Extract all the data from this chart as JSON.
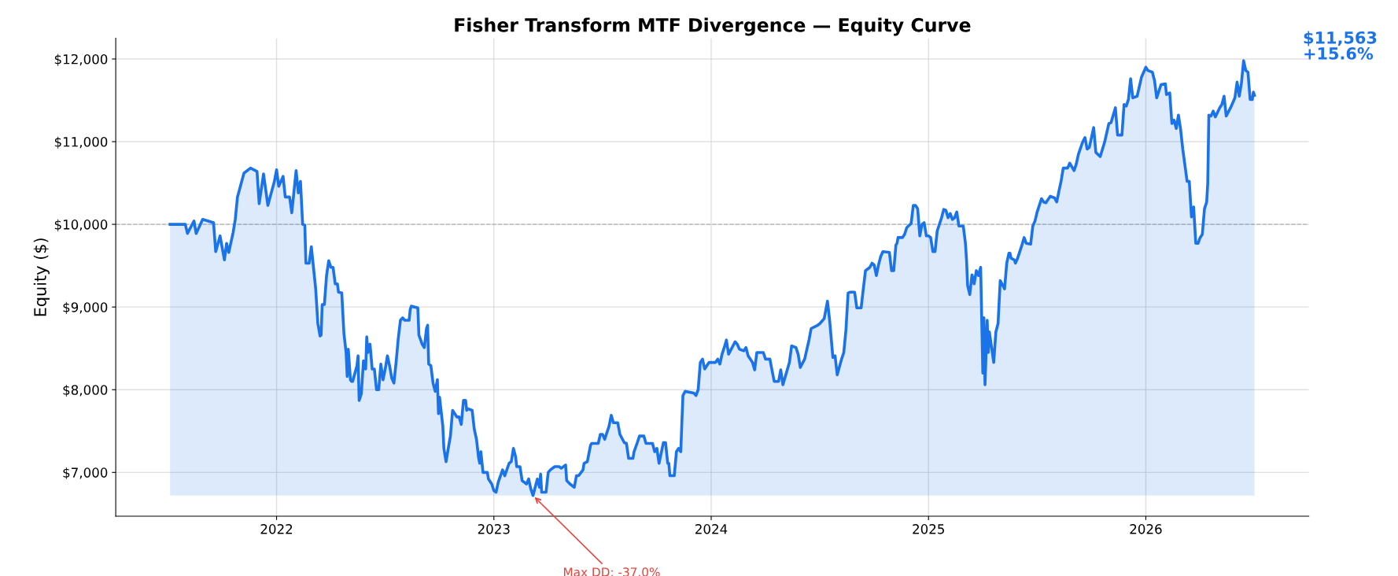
{
  "chart_data": {
    "type": "area",
    "title": "Fisher Transform MTF Divergence — Equity Curve",
    "ylabel": "Equity ($)",
    "xlim": [
      2021.26,
      2026.75
    ],
    "xticks": [
      {
        "value": 2022,
        "label": "2022"
      },
      {
        "value": 2023,
        "label": "2023"
      },
      {
        "value": 2024,
        "label": "2024"
      },
      {
        "value": 2025,
        "label": "2025"
      },
      {
        "value": 2026,
        "label": "2026"
      }
    ],
    "ylim": [
      6470,
      12250
    ],
    "yticks": [
      {
        "value": 7000,
        "label": "$7,000"
      },
      {
        "value": 8000,
        "label": "$8,000"
      },
      {
        "value": 9000,
        "label": "$9,000"
      },
      {
        "value": 10000,
        "label": "$10,000"
      },
      {
        "value": 11000,
        "label": "$11,000"
      },
      {
        "value": 12000,
        "label": "$12,000"
      }
    ],
    "grid": true,
    "ref_lines": [
      {
        "axis": "y",
        "value": 10000,
        "color": "#b0b0b0",
        "line_style": "dashed"
      }
    ],
    "annotations": [
      {
        "text": "Max DD: -37.0%",
        "x": 2023.18,
        "y": 6720
      },
      "$11,563\n+15.6%"
    ],
    "series": [
      {
        "color": "#1a73e8",
        "x": [
          2021.51,
          2021.58,
          2021.59,
          2021.62,
          2021.63,
          2021.66,
          2021.71,
          2021.72,
          2021.74,
          2021.76,
          2021.77,
          2021.78,
          2021.8,
          2021.81,
          2021.82,
          2021.85,
          2021.88,
          2021.91,
          2021.92,
          2021.94,
          2021.96,
          2021.99,
          2022.0,
          2022.01,
          2022.03,
          2022.04,
          2022.06,
          2022.07,
          2022.09,
          2022.1,
          2022.11,
          2022.12,
          2022.13,
          2022.135,
          2022.15,
          2022.16,
          2022.18,
          2022.19,
          2022.2,
          2022.205,
          2022.21,
          2022.22,
          2022.23,
          2022.24,
          2022.25,
          2022.26,
          2022.27,
          2022.28,
          2022.285,
          2022.3,
          2022.31,
          2022.32,
          2022.325,
          2022.33,
          2022.34,
          2022.345,
          2022.35,
          2022.37,
          2022.375,
          2022.38,
          2022.39,
          2022.4,
          2022.41,
          2022.415,
          2022.42,
          2022.43,
          2022.44,
          2022.45,
          2022.46,
          2022.47,
          2022.48,
          2022.49,
          2022.5,
          2022.51,
          2022.52,
          2022.53,
          2022.54,
          2022.55,
          2022.56,
          2022.57,
          2022.58,
          2022.59,
          2022.61,
          2022.615,
          2022.62,
          2022.65,
          2022.655,
          2022.67,
          2022.68,
          2022.69,
          2022.695,
          2022.7,
          2022.71,
          2022.72,
          2022.73,
          2022.74,
          2022.745,
          2022.75,
          2022.765,
          2022.77,
          2022.78,
          2022.79,
          2022.8,
          2022.81,
          2022.83,
          2022.84,
          2022.85,
          2022.86,
          2022.87,
          2022.875,
          2022.88,
          2022.9,
          2022.91,
          2022.92,
          2022.93,
          2022.935,
          2022.94,
          2022.95,
          2022.97,
          2022.975,
          2022.99,
          2023.0,
          2023.01,
          2023.02,
          2023.04,
          2023.05,
          2023.07,
          2023.08,
          2023.09,
          2023.1,
          2023.105,
          2023.12,
          2023.13,
          2023.15,
          2023.16,
          2023.17,
          2023.18,
          2023.2,
          2023.21,
          2023.215,
          2023.22,
          2023.24,
          2023.25,
          2023.26,
          2023.28,
          2023.3,
          2023.31,
          2023.33,
          2023.335,
          2023.35,
          2023.37,
          2023.38,
          2023.39,
          2023.41,
          2023.415,
          2023.43,
          2023.445,
          2023.45,
          2023.48,
          2023.49,
          2023.5,
          2023.51,
          2023.53,
          2023.54,
          2023.55,
          2023.57,
          2023.58,
          2023.6,
          2023.61,
          2023.62,
          2023.64,
          2023.645,
          2023.66,
          2023.67,
          2023.69,
          2023.7,
          2023.73,
          2023.74,
          2023.75,
          2023.76,
          2023.78,
          2023.79,
          2023.8,
          2023.805,
          2023.81,
          2023.83,
          2023.84,
          2023.85,
          2023.86,
          2023.865,
          2023.87,
          2023.88,
          2023.92,
          2023.93,
          2023.94,
          2023.95,
          2023.96,
          2023.97,
          2023.99,
          2024.02,
          2024.03,
          2024.04,
          2024.05,
          2024.06,
          2024.07,
          2024.08,
          2024.11,
          2024.12,
          2024.13,
          2024.15,
          2024.16,
          2024.17,
          2024.19,
          2024.2,
          2024.21,
          2024.24,
          2024.25,
          2024.27,
          2024.29,
          2024.31,
          2024.32,
          2024.33,
          2024.35,
          2024.36,
          2024.37,
          2024.39,
          2024.4,
          2024.41,
          2024.43,
          2024.45,
          2024.46,
          2024.49,
          2024.5,
          2024.52,
          2024.535,
          2024.545,
          2024.56,
          2024.57,
          2024.58,
          2024.6,
          2024.61,
          2024.62,
          2024.63,
          2024.64,
          2024.66,
          2024.67,
          2024.69,
          2024.7,
          2024.71,
          2024.73,
          2024.74,
          2024.75,
          2024.76,
          2024.77,
          2024.78,
          2024.79,
          2024.82,
          2024.83,
          2024.84,
          2024.85,
          2024.855,
          2024.86,
          2024.88,
          2024.89,
          2024.9,
          2024.92,
          2024.93,
          2024.94,
          2024.95,
          2024.96,
          2024.97,
          2024.98,
          2024.99,
          2025.0,
          2025.01,
          2025.02,
          2025.03,
          2025.04,
          2025.06,
          2025.07,
          2025.08,
          2025.09,
          2025.1,
          2025.11,
          2025.12,
          2025.13,
          2025.14,
          2025.16,
          2025.17,
          2025.175,
          2025.18,
          2025.19,
          2025.2,
          2025.21,
          2025.22,
          2025.23,
          2025.24,
          2025.25,
          2025.255,
          2025.26,
          2025.27,
          2025.275,
          2025.28,
          2025.3,
          2025.31,
          2025.32,
          2025.33,
          2025.35,
          2025.36,
          2025.37,
          2025.375,
          2025.38,
          2025.395,
          2025.4,
          2025.41,
          2025.43,
          2025.44,
          2025.45,
          2025.47,
          2025.48,
          2025.49,
          2025.5,
          2025.52,
          2025.53,
          2025.54,
          2025.56,
          2025.58,
          2025.59,
          2025.6,
          2025.61,
          2025.62,
          2025.64,
          2025.65,
          2025.67,
          2025.68,
          2025.69,
          2025.71,
          2025.72,
          2025.73,
          2025.74,
          2025.76,
          2025.77,
          2025.79,
          2025.81,
          2025.83,
          2025.84,
          2025.86,
          2025.87,
          2025.89,
          2025.9,
          2025.91,
          2025.92,
          2025.93,
          2025.94,
          2025.96,
          2025.98,
          2025.99,
          2026.0,
          2026.01,
          2026.03,
          2026.04,
          2026.05,
          2026.07,
          2026.09,
          2026.095,
          2026.11,
          2026.12,
          2026.13,
          2026.14,
          2026.15,
          2026.16,
          2026.17,
          2026.19,
          2026.2,
          2026.21,
          2026.22,
          2026.23,
          2026.24,
          2026.25,
          2026.26,
          2026.27,
          2026.28,
          2026.285,
          2026.29,
          2026.3,
          2026.31,
          2026.32,
          2026.34,
          2026.35,
          2026.36,
          2026.37,
          2026.39,
          2026.41,
          2026.42,
          2026.43,
          2026.44,
          2026.45,
          2026.46,
          2026.47,
          2026.48,
          2026.49,
          2026.495,
          2026.5
        ],
        "values": [
          10000,
          10000,
          9890,
          10040,
          9890,
          10060,
          10020,
          9670,
          9860,
          9570,
          9770,
          9660,
          9900,
          10060,
          10330,
          10620,
          10680,
          10640,
          10250,
          10610,
          10230,
          10520,
          10660,
          10460,
          10580,
          10330,
          10330,
          10140,
          10650,
          10380,
          10520,
          10000,
          9990,
          9530,
          9530,
          9730,
          9220,
          8800,
          8650,
          8660,
          9030,
          9030,
          9380,
          9560,
          9480,
          9480,
          9280,
          9280,
          9180,
          9170,
          8680,
          8450,
          8160,
          8490,
          8120,
          8100,
          8100,
          8290,
          8410,
          7870,
          7950,
          8350,
          8250,
          8640,
          8450,
          8550,
          8250,
          8250,
          8000,
          8000,
          8310,
          8120,
          8250,
          8410,
          8290,
          8140,
          8080,
          8330,
          8620,
          8840,
          8870,
          8840,
          8840,
          8970,
          9010,
          8990,
          8660,
          8550,
          8510,
          8740,
          8780,
          8310,
          8290,
          8080,
          7980,
          8120,
          7710,
          7910,
          7560,
          7290,
          7130,
          7290,
          7440,
          7750,
          7670,
          7670,
          7580,
          7870,
          7870,
          7750,
          7770,
          7750,
          7520,
          7400,
          7170,
          7110,
          7250,
          7000,
          7000,
          6920,
          6860,
          6780,
          6760,
          6880,
          7030,
          6960,
          7110,
          7130,
          7290,
          7190,
          7070,
          7070,
          6900,
          6860,
          6920,
          6800,
          6720,
          6920,
          6820,
          6980,
          6760,
          6760,
          7000,
          7030,
          7070,
          7070,
          7050,
          7090,
          6900,
          6860,
          6820,
          6960,
          6960,
          7030,
          7110,
          7130,
          7330,
          7350,
          7350,
          7460,
          7460,
          7400,
          7560,
          7690,
          7600,
          7600,
          7460,
          7360,
          7350,
          7170,
          7170,
          7250,
          7360,
          7440,
          7440,
          7350,
          7350,
          7250,
          7290,
          7110,
          7360,
          7360,
          7110,
          7110,
          6960,
          6960,
          7250,
          7290,
          7250,
          7600,
          7930,
          7980,
          7960,
          7930,
          8000,
          8330,
          8370,
          8250,
          8330,
          8330,
          8370,
          8310,
          8430,
          8510,
          8600,
          8430,
          8580,
          8550,
          8490,
          8470,
          8510,
          8410,
          8330,
          8240,
          8450,
          8450,
          8370,
          8370,
          8100,
          8100,
          8240,
          8060,
          8240,
          8330,
          8530,
          8510,
          8430,
          8270,
          8370,
          8600,
          8740,
          8780,
          8800,
          8860,
          9070,
          8840,
          8390,
          8410,
          8180,
          8370,
          8450,
          8720,
          9170,
          9180,
          9180,
          8990,
          8990,
          9220,
          9440,
          9480,
          9530,
          9510,
          9380,
          9510,
          9610,
          9670,
          9660,
          9440,
          9440,
          9750,
          9770,
          9840,
          9840,
          9880,
          9960,
          10010,
          10230,
          10230,
          10190,
          9860,
          10000,
          10020,
          9860,
          9860,
          9840,
          9670,
          9670,
          9920,
          10080,
          10180,
          10170,
          10080,
          10130,
          10060,
          10080,
          10150,
          9980,
          9980,
          9770,
          9570,
          9260,
          9150,
          9390,
          9280,
          9440,
          9380,
          9480,
          8200,
          8870,
          8060,
          8840,
          8450,
          8700,
          8330,
          8700,
          8800,
          9320,
          9220,
          9530,
          9650,
          9650,
          9590,
          9570,
          9530,
          9590,
          9750,
          9840,
          9770,
          9760,
          9980,
          10040,
          10150,
          10310,
          10270,
          10260,
          10340,
          10320,
          10270,
          10400,
          10520,
          10680,
          10680,
          10740,
          10650,
          10730,
          10850,
          11000,
          11050,
          10910,
          10930,
          11170,
          10870,
          10820,
          10990,
          11220,
          11230,
          11410,
          11080,
          11080,
          11450,
          11430,
          11510,
          11760,
          11530,
          11550,
          11780,
          11840,
          11900,
          11860,
          11840,
          11740,
          11530,
          11690,
          11700,
          11570,
          11590,
          11220,
          11260,
          11160,
          11320,
          11150,
          10910,
          10520,
          10520,
          10090,
          10210,
          9770,
          9770,
          9840,
          9880,
          10190,
          10270,
          10500,
          11320,
          11310,
          11370,
          11300,
          11410,
          11450,
          11550,
          11310,
          11410,
          11530,
          11720,
          11550,
          11710,
          11980,
          11860,
          11840,
          11510,
          11510,
          11600,
          11560
        ]
      }
    ]
  }
}
